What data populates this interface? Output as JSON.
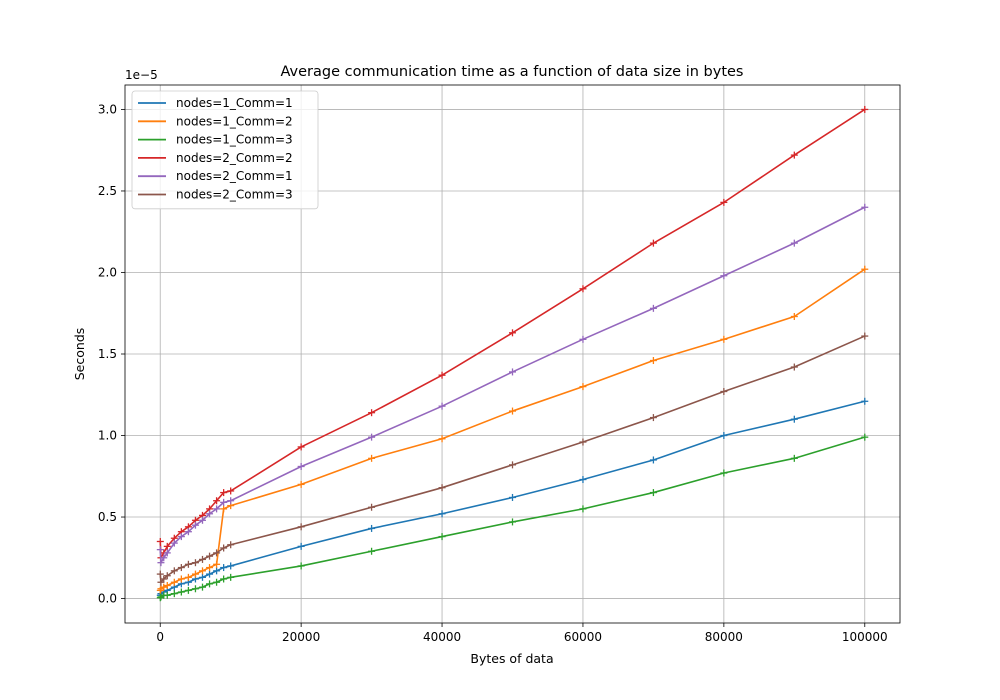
{
  "chart_data": {
    "type": "line",
    "title": "Average communication time as a function of data size in bytes",
    "xlabel": "Bytes of data",
    "ylabel": "Seconds",
    "y_offset_label": "1e−5",
    "xlim": [
      -5000,
      105000
    ],
    "ylim": [
      -0.15,
      3.15
    ],
    "xticks": [
      0,
      20000,
      40000,
      60000,
      80000,
      100000
    ],
    "xtick_labels": [
      "0",
      "20000",
      "40000",
      "60000",
      "80000",
      "100000"
    ],
    "yticks": [
      0,
      0.5,
      1.0,
      1.5,
      2.0,
      2.5,
      3.0
    ],
    "ytick_labels": [
      "0.0",
      "0.5",
      "1.0",
      "1.5",
      "2.0",
      "2.5",
      "3.0"
    ],
    "y_units_note": "values in units of 1e-5 seconds",
    "grid": true,
    "legend_position": "upper-left",
    "marker": "+",
    "x": [
      10,
      100,
      500,
      1000,
      2000,
      3000,
      4000,
      5000,
      6000,
      7000,
      8000,
      9000,
      10000,
      20000,
      30000,
      40000,
      50000,
      60000,
      70000,
      80000,
      90000,
      100000
    ],
    "series": [
      {
        "name": "nodes=1_Comm=1",
        "color": "#1f77b4",
        "values": [
          0.02,
          0.03,
          0.04,
          0.05,
          0.07,
          0.09,
          0.1,
          0.12,
          0.13,
          0.15,
          0.17,
          0.19,
          0.2,
          0.32,
          0.43,
          0.52,
          0.62,
          0.73,
          0.85,
          1.0,
          1.1,
          1.21
        ]
      },
      {
        "name": "nodes=1_Comm=2",
        "color": "#ff7f0e",
        "values": [
          0.05,
          0.06,
          0.07,
          0.08,
          0.1,
          0.12,
          0.13,
          0.15,
          0.17,
          0.19,
          0.21,
          0.55,
          0.57,
          0.7,
          0.86,
          0.98,
          1.15,
          1.3,
          1.46,
          1.59,
          1.73,
          2.02
        ]
      },
      {
        "name": "nodes=1_Comm=3",
        "color": "#2ca02c",
        "values": [
          0.005,
          0.01,
          0.02,
          0.02,
          0.03,
          0.04,
          0.05,
          0.06,
          0.07,
          0.09,
          0.1,
          0.12,
          0.13,
          0.2,
          0.29,
          0.38,
          0.47,
          0.55,
          0.65,
          0.77,
          0.86,
          0.99
        ]
      },
      {
        "name": "nodes=2_Comm=2",
        "color": "#d62728",
        "values": [
          0.35,
          0.25,
          0.28,
          0.32,
          0.37,
          0.41,
          0.44,
          0.48,
          0.51,
          0.55,
          0.6,
          0.65,
          0.66,
          0.93,
          1.14,
          1.37,
          1.63,
          1.9,
          2.18,
          2.43,
          2.72,
          3.0
        ]
      },
      {
        "name": "nodes=2_Comm=1",
        "color": "#9467bd",
        "values": [
          0.3,
          0.22,
          0.25,
          0.28,
          0.34,
          0.38,
          0.41,
          0.45,
          0.48,
          0.52,
          0.55,
          0.59,
          0.6,
          0.81,
          0.99,
          1.18,
          1.39,
          1.59,
          1.78,
          1.98,
          2.18,
          2.4
        ]
      },
      {
        "name": "nodes=2_Comm=3",
        "color": "#8c564b",
        "values": [
          0.15,
          0.1,
          0.12,
          0.14,
          0.17,
          0.19,
          0.21,
          0.22,
          0.24,
          0.26,
          0.28,
          0.31,
          0.33,
          0.44,
          0.56,
          0.68,
          0.82,
          0.96,
          1.11,
          1.27,
          1.42,
          1.61
        ]
      }
    ]
  }
}
